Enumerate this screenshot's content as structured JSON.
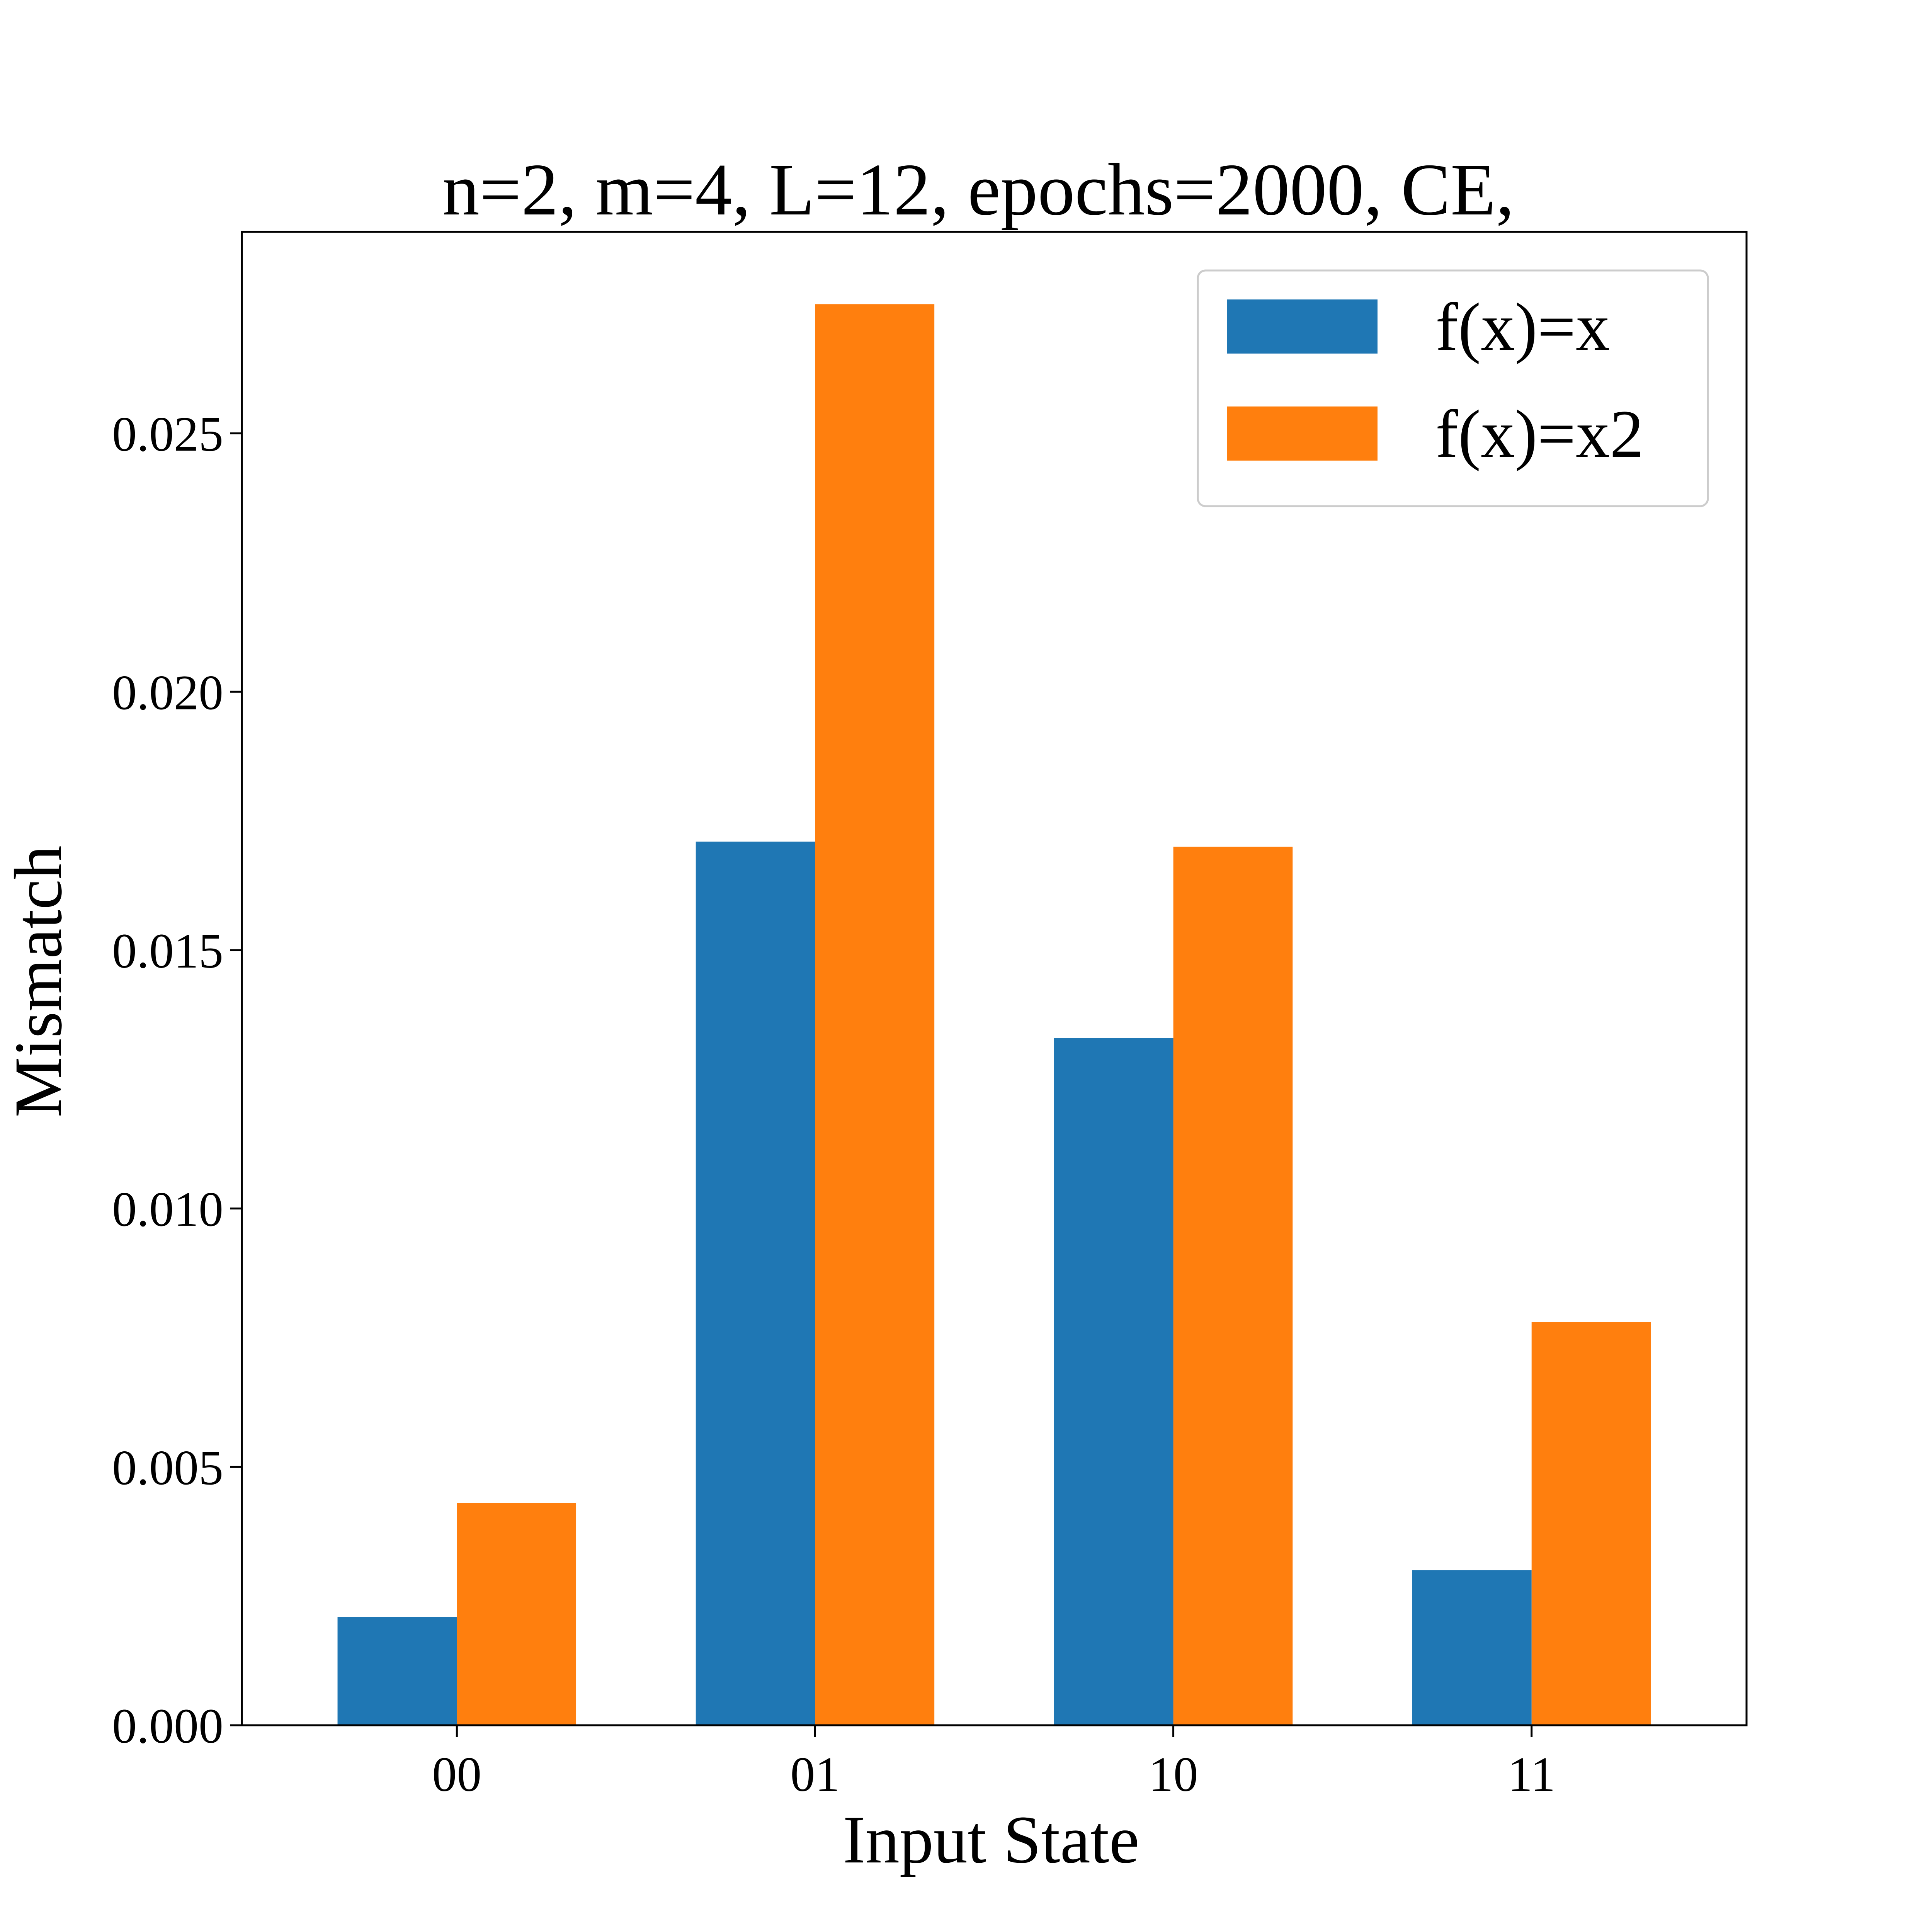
{
  "chart_data": {
    "type": "bar",
    "title": "n=2, m=4, L=12, epochs=2000, CE,",
    "xlabel": "Input State",
    "ylabel": "Mismatch",
    "categories": [
      "00",
      "01",
      "10",
      "11"
    ],
    "series": [
      {
        "name": "f(x)=x",
        "color": "#1f77b4",
        "values": [
          0.0021,
          0.0171,
          0.0133,
          0.003
        ]
      },
      {
        "name": "f(x)=x2",
        "color": "#ff7f0e",
        "values": [
          0.0043,
          0.0275,
          0.017,
          0.0078
        ]
      }
    ],
    "ylim": [
      0,
      0.0289
    ],
    "yticks": [
      0.0,
      0.005,
      0.01,
      0.015,
      0.02,
      0.025
    ],
    "ytick_labels": [
      "0.000",
      "0.005",
      "0.010",
      "0.015",
      "0.020",
      "0.025"
    ],
    "grid": false,
    "legend_position": "top-right"
  }
}
